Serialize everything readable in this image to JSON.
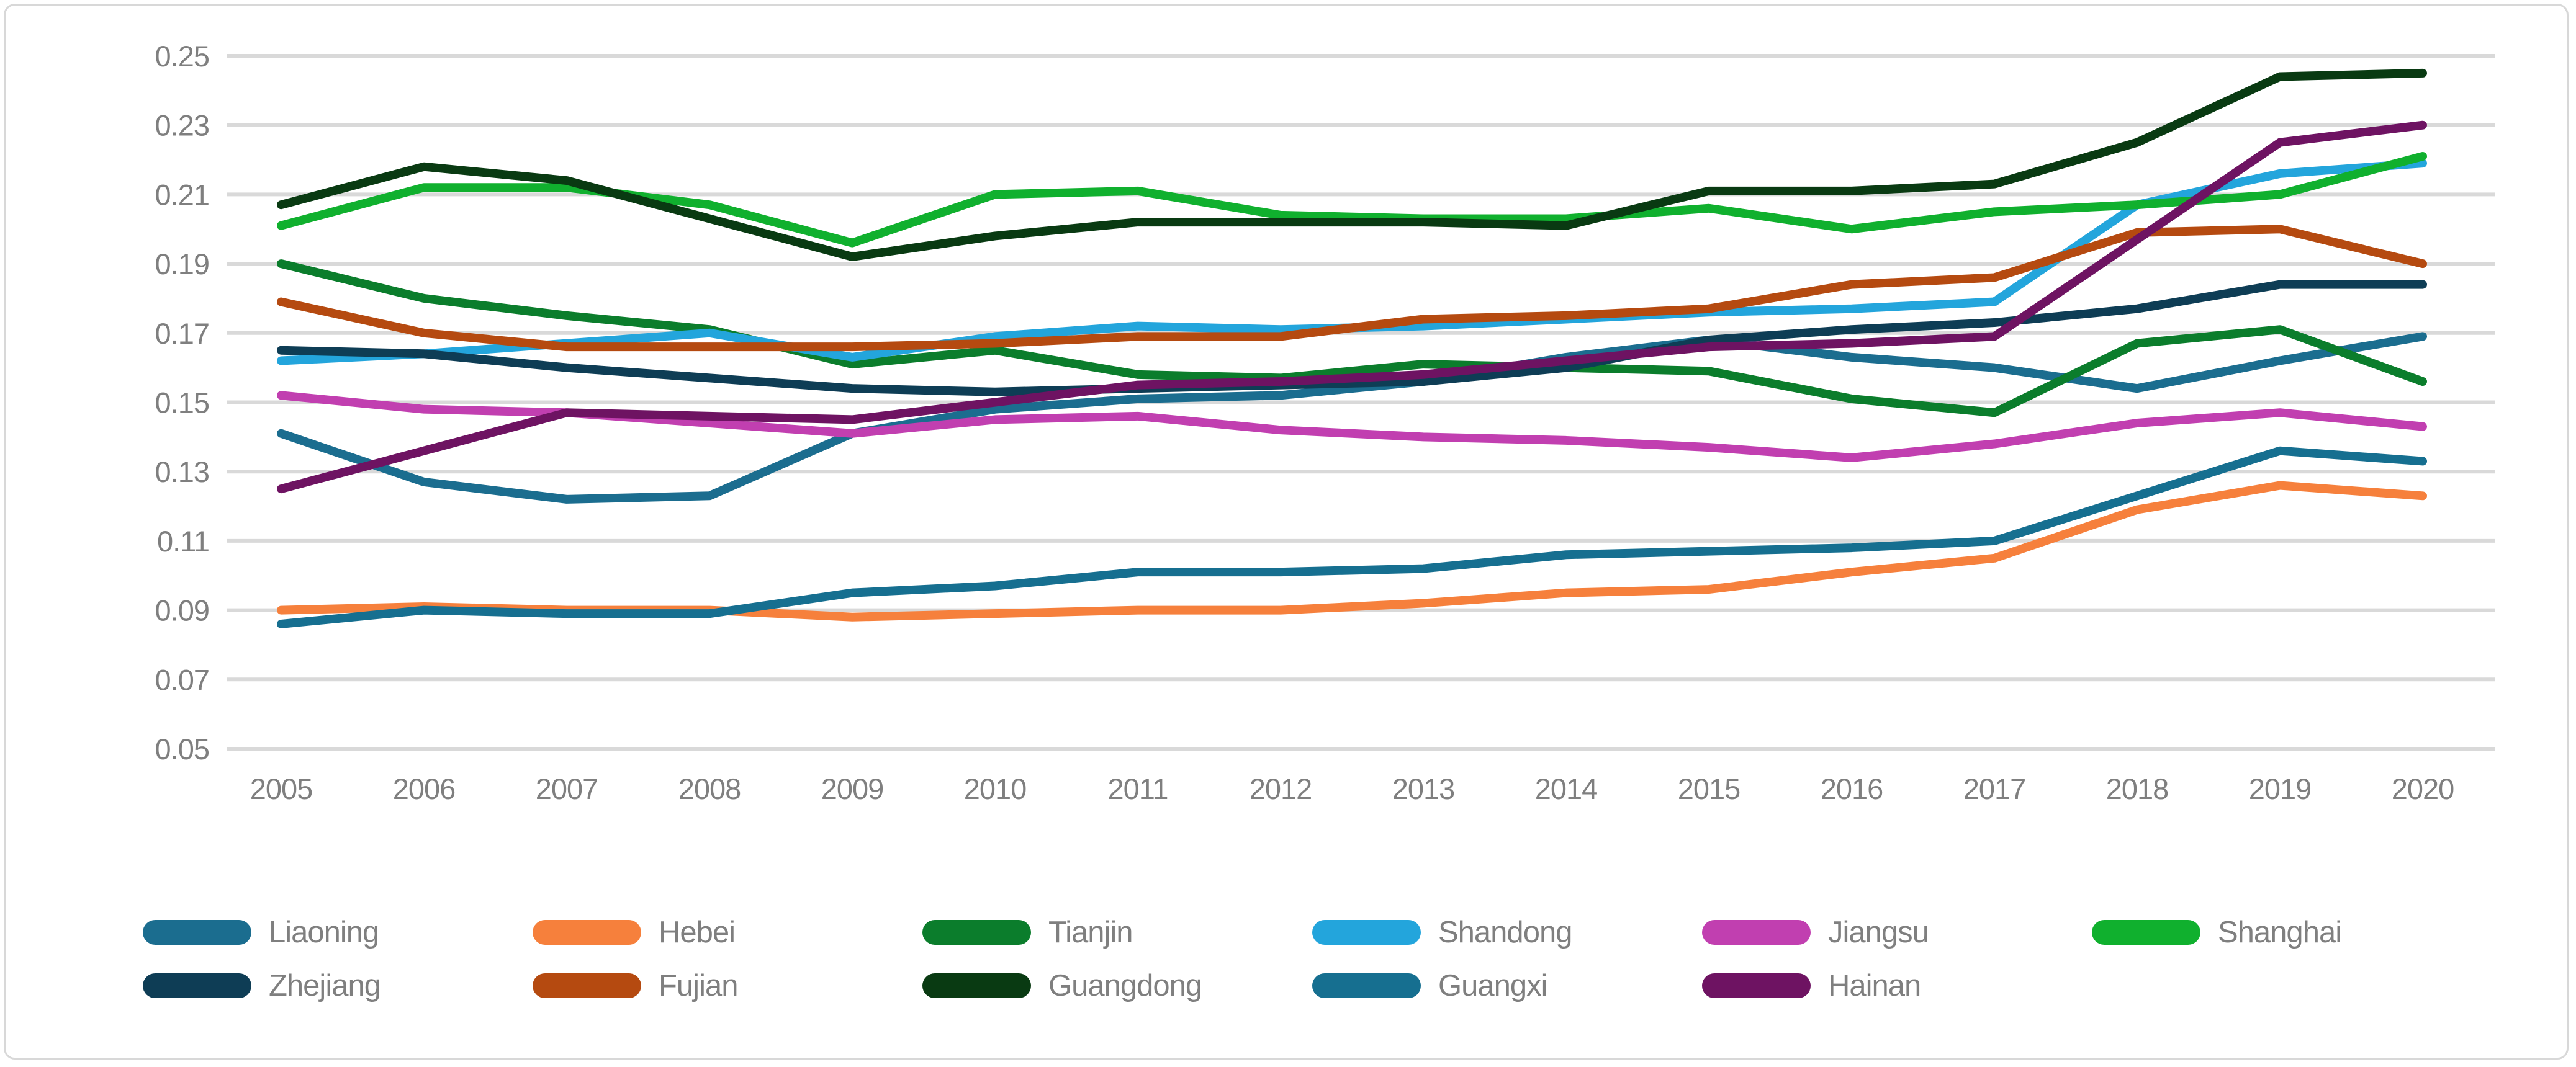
{
  "chart_data": {
    "type": "line",
    "title": "",
    "xlabel": "",
    "ylabel": "",
    "x_categories": [
      2005,
      2006,
      2007,
      2008,
      2009,
      2010,
      2011,
      2012,
      2013,
      2014,
      2015,
      2016,
      2017,
      2018,
      2019,
      2020
    ],
    "ylim": [
      0.05,
      0.25
    ],
    "ytick_labels": [
      "0.25",
      "0.23",
      "0.21",
      "0.19",
      "0.17",
      "0.15",
      "0.13",
      "0.11",
      "0.09",
      "0.07",
      "0.05"
    ],
    "grid": true,
    "legend_position": "bottom",
    "gridline_color": "#d9d9d9",
    "axis_text_color": "#7f7f7f",
    "series": [
      {
        "name": "Liaoning",
        "color": "#1b6d8f",
        "values": [
          0.141,
          0.127,
          0.122,
          0.123,
          0.141,
          0.148,
          0.151,
          0.152,
          0.156,
          0.163,
          0.168,
          0.163,
          0.16,
          0.154,
          0.162,
          0.169
        ]
      },
      {
        "name": "Hebei",
        "color": "#f6803c",
        "values": [
          0.09,
          0.091,
          0.09,
          0.09,
          0.088,
          0.089,
          0.09,
          0.09,
          0.092,
          0.095,
          0.096,
          0.101,
          0.105,
          0.119,
          0.126,
          0.123
        ]
      },
      {
        "name": "Tianjin",
        "color": "#0b7d2c",
        "values": [
          0.19,
          0.18,
          0.175,
          0.171,
          0.161,
          0.165,
          0.158,
          0.157,
          0.161,
          0.16,
          0.159,
          0.151,
          0.147,
          0.167,
          0.171,
          0.156
        ]
      },
      {
        "name": "Shandong",
        "color": "#23a5dc",
        "values": [
          0.162,
          0.164,
          0.167,
          0.17,
          0.163,
          0.169,
          0.172,
          0.171,
          0.172,
          0.174,
          0.176,
          0.177,
          0.179,
          0.207,
          0.216,
          0.219
        ]
      },
      {
        "name": "Jiangsu",
        "color": "#c13fb0",
        "values": [
          0.152,
          0.148,
          0.147,
          0.144,
          0.141,
          0.145,
          0.146,
          0.142,
          0.14,
          0.139,
          0.137,
          0.134,
          0.138,
          0.144,
          0.147,
          0.143
        ]
      },
      {
        "name": "Shanghai",
        "color": "#10b02e",
        "values": [
          0.201,
          0.212,
          0.212,
          0.207,
          0.196,
          0.21,
          0.211,
          0.204,
          0.203,
          0.203,
          0.206,
          0.2,
          0.205,
          0.207,
          0.21,
          0.221
        ]
      },
      {
        "name": "Zhejiang",
        "color": "#0e3d55",
        "values": [
          0.165,
          0.164,
          0.16,
          0.157,
          0.154,
          0.153,
          0.154,
          0.155,
          0.156,
          0.16,
          0.168,
          0.171,
          0.173,
          0.177,
          0.184,
          0.184
        ]
      },
      {
        "name": "Fujian",
        "color": "#b54a10",
        "values": [
          0.179,
          0.17,
          0.166,
          0.166,
          0.166,
          0.167,
          0.169,
          0.169,
          0.174,
          0.175,
          0.177,
          0.184,
          0.186,
          0.199,
          0.2,
          0.19
        ]
      },
      {
        "name": "Guangdong",
        "color": "#093a12",
        "values": [
          0.207,
          0.218,
          0.214,
          0.203,
          0.192,
          0.198,
          0.202,
          0.202,
          0.202,
          0.201,
          0.211,
          0.211,
          0.213,
          0.225,
          0.244,
          0.245
        ]
      },
      {
        "name": "Guangxi",
        "color": "#166f90",
        "values": [
          0.086,
          0.09,
          0.089,
          0.089,
          0.095,
          0.097,
          0.101,
          0.101,
          0.102,
          0.106,
          0.107,
          0.108,
          0.11,
          0.123,
          0.136,
          0.133
        ]
      },
      {
        "name": "Hainan",
        "color": "#6e1362",
        "values": [
          0.125,
          0.136,
          0.147,
          0.146,
          0.145,
          0.15,
          0.155,
          0.156,
          0.158,
          0.162,
          0.166,
          0.167,
          0.169,
          0.197,
          0.225,
          0.23
        ]
      }
    ]
  }
}
